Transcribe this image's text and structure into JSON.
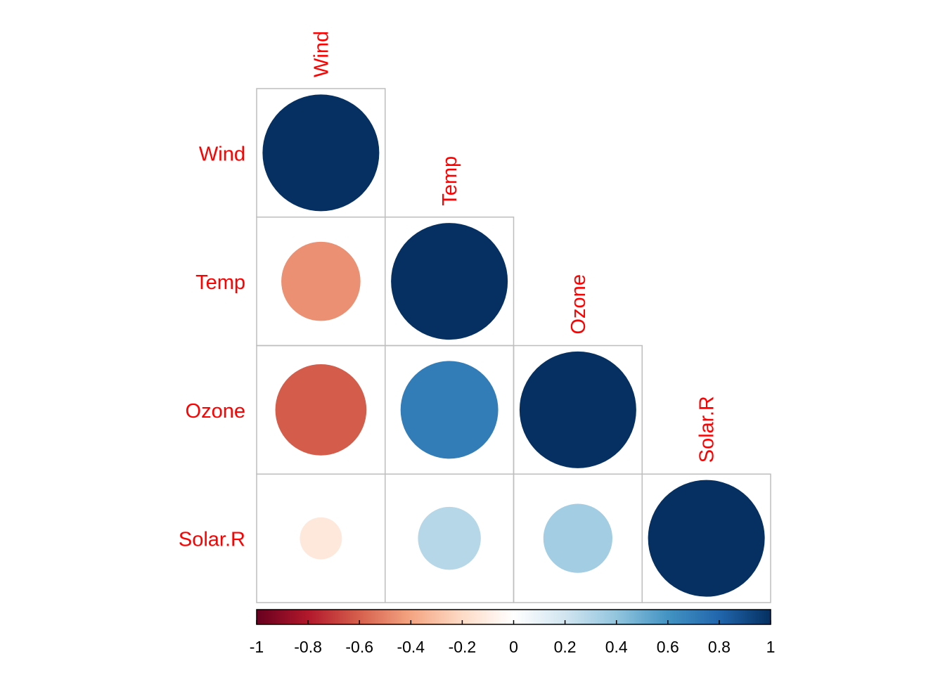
{
  "chart_data": {
    "type": "heatmap",
    "subtype": "correlation-matrix-lower-triangle-circles",
    "variables": [
      "Wind",
      "Temp",
      "Ozone",
      "Solar.R"
    ],
    "matrix": [
      [
        1.0,
        null,
        null,
        null
      ],
      [
        -0.46,
        1.0,
        null,
        null
      ],
      [
        -0.61,
        0.7,
        1.0,
        null
      ],
      [
        -0.13,
        0.29,
        0.35,
        1.0
      ]
    ],
    "colorbar": {
      "range": [
        -1,
        1
      ],
      "ticks": [
        "-1",
        "-0.8",
        "-0.6",
        "-0.4",
        "-0.2",
        "0",
        "0.2",
        "0.4",
        "0.6",
        "0.8",
        "1"
      ],
      "colors": [
        "#67001F",
        "#B2182B",
        "#D6604D",
        "#F4A582",
        "#FDDBC7",
        "#FFFFFF",
        "#D1E5F0",
        "#92C5DE",
        "#4393C3",
        "#2166AC",
        "#053061"
      ]
    },
    "label_color": "#FF0000",
    "grid_color": "#BEBEBE"
  }
}
